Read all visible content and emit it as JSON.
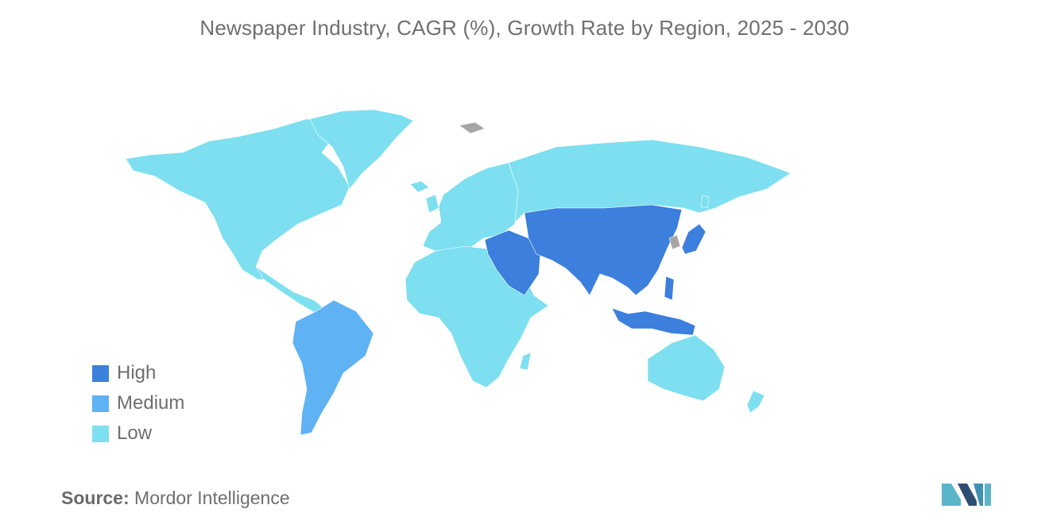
{
  "title": "Newspaper Industry, CAGR (%), Growth Rate by Region, 2025 - 2030",
  "legend": [
    {
      "label": "High",
      "color": "#3c7fdc"
    },
    {
      "label": "Medium",
      "color": "#5fb2f4"
    },
    {
      "label": "Low",
      "color": "#7ddff0"
    }
  ],
  "no_data_color": "#a6a6a6",
  "regions": {
    "north_america": "Low",
    "greenland": "Low",
    "europe": "Low",
    "russia_north_asia": "Low",
    "africa": "Low",
    "oceania": "Low",
    "south_america": "Medium",
    "middle_east": "High",
    "south_central_east_asia": "High",
    "southeast_asia": "High"
  },
  "source": {
    "label": "Source:",
    "value": "Mordor Intelligence"
  },
  "logo_icon": "mordor-intelligence-logo"
}
